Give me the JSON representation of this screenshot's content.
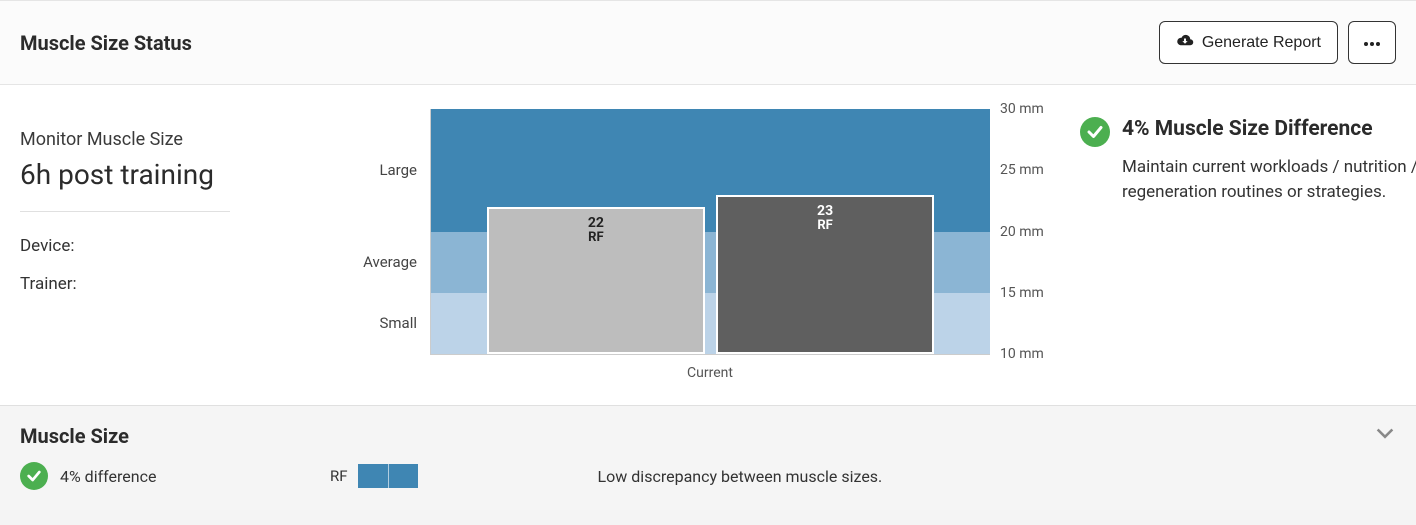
{
  "header": {
    "title": "Muscle Size Status",
    "generate_label": "Generate Report"
  },
  "left": {
    "subtitle": "Monitor Muscle Size",
    "timepoint": "6h post training",
    "device_label": "Device:",
    "device_value": "",
    "trainer_label": "Trainer:",
    "trainer_value": ""
  },
  "chart": {
    "type": "bar-with-bands",
    "y_min": 10,
    "y_max": 30,
    "y_unit": "mm",
    "y_ticks": [
      10,
      15,
      20,
      25,
      30
    ],
    "bands": [
      {
        "label": "Small",
        "from": 10,
        "to": 15,
        "color": "#bcd3e8"
      },
      {
        "label": "Average",
        "from": 15,
        "to": 20,
        "color": "#8bb5d4"
      },
      {
        "label": "Large",
        "from": 20,
        "to": 30,
        "color": "#3f86b3"
      }
    ],
    "x_label": "Current",
    "bars": [
      {
        "value": 22,
        "label": "22",
        "sublabel": "RF",
        "fill": "#bdbdbd",
        "text_color": "#222222"
      },
      {
        "value": 23,
        "label": "23",
        "sublabel": "RF",
        "fill": "#5f5f5f",
        "text_color": "#ffffff"
      }
    ],
    "bar_gap_pct": 2,
    "bar_group_inset_pct": 10
  },
  "status": {
    "title": "4% Muscle Size Difference",
    "description": "Maintain current workloads / nutrition / regeneration routines or strategies.",
    "icon_color": "#4caf50"
  },
  "section2": {
    "title": "Muscle Size",
    "diff_text": "4% difference",
    "muscle_code": "RF",
    "swatch_colors": [
      "#3f86b3",
      "#3f86b3"
    ],
    "description": "Low discrepancy between muscle sizes."
  }
}
